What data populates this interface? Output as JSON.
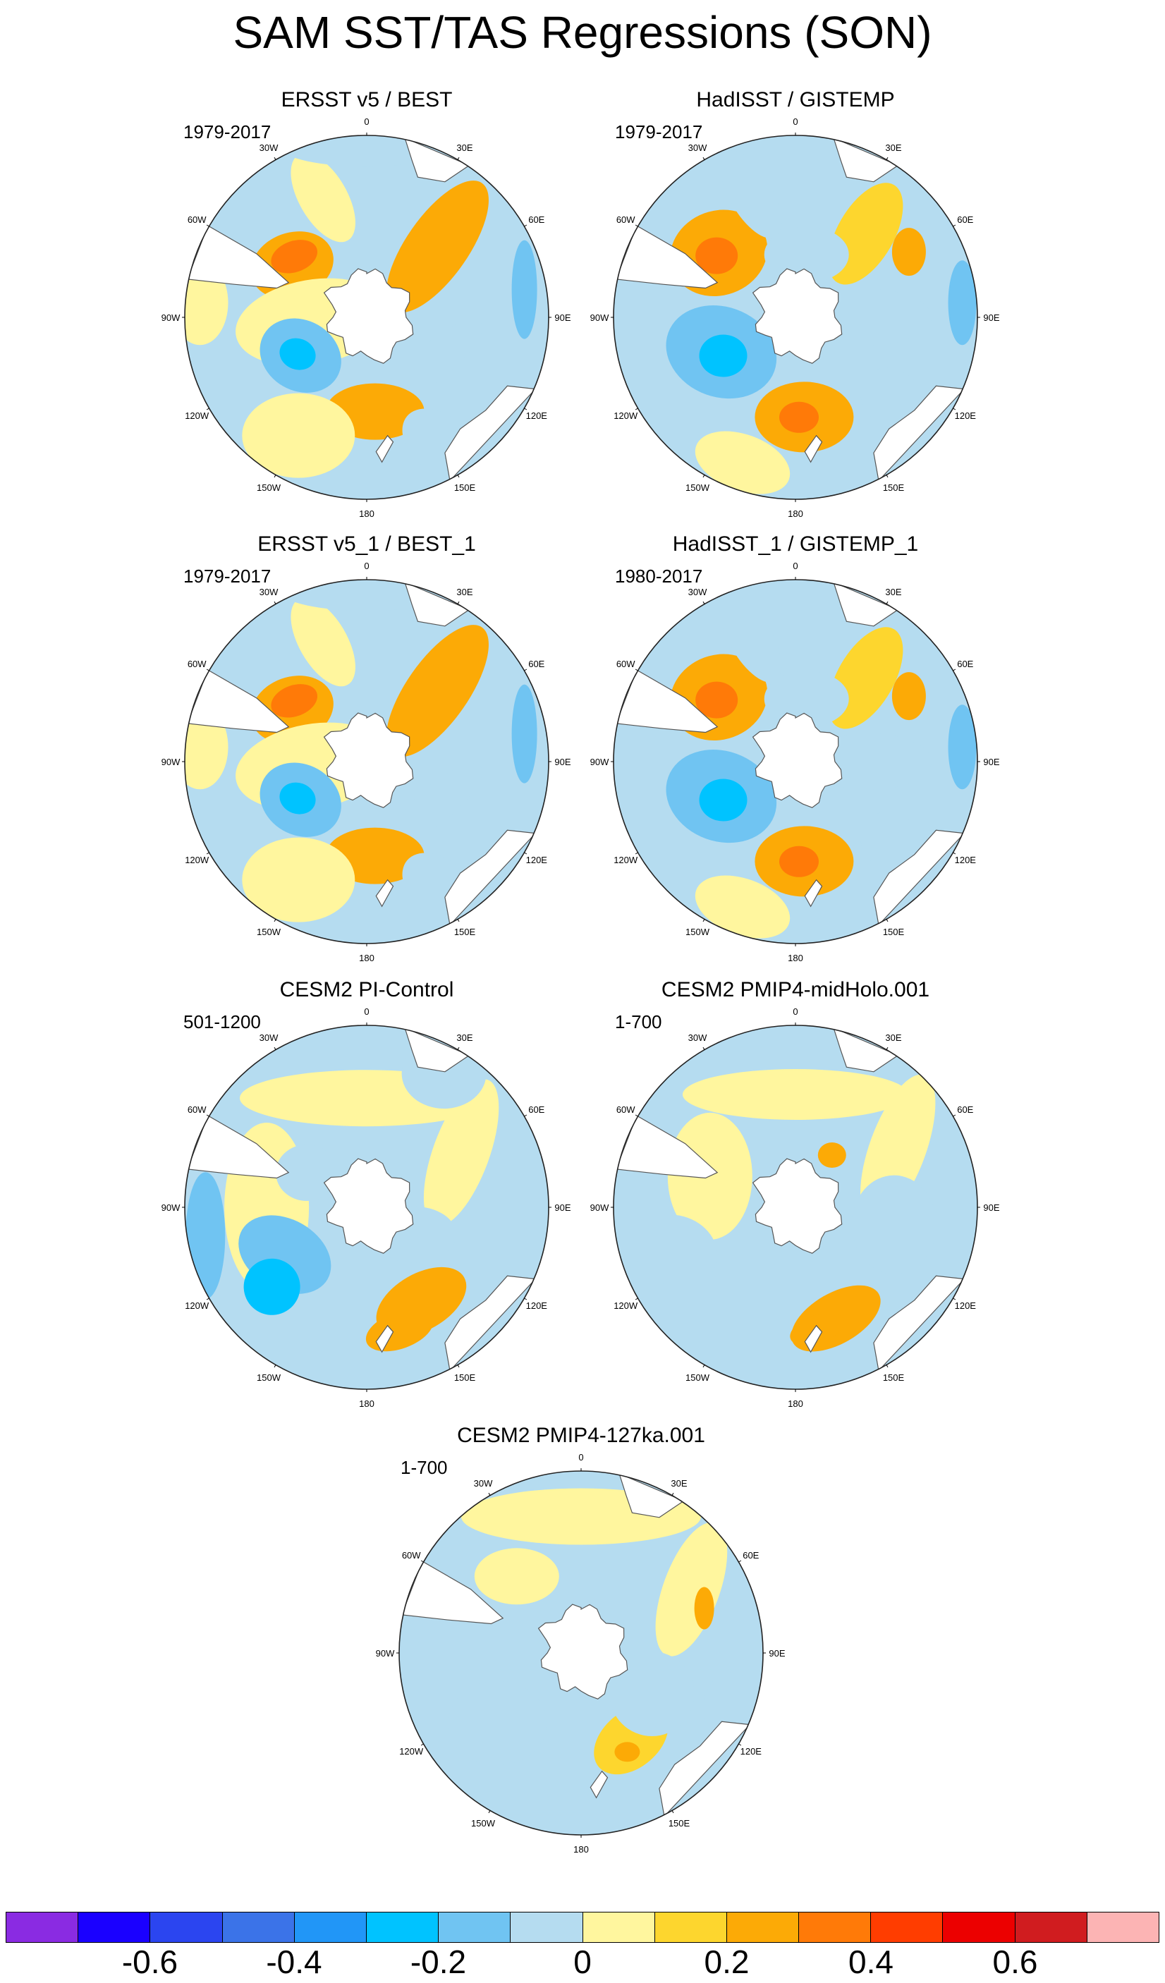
{
  "title": "SAM SST/TAS Regressions (SON)",
  "panels": [
    {
      "title": "ERSST v5 / BEST",
      "period": "1979-2017",
      "pattern": "obs_smooth"
    },
    {
      "title": "HadISST / GISTEMP",
      "period": "1979-2017",
      "pattern": "obs_noisy"
    },
    {
      "title": "ERSST v5_1 / BEST_1",
      "period": "1979-2017",
      "pattern": "obs_smooth"
    },
    {
      "title": "HadISST_1 / GISTEMP_1",
      "period": "1980-2017",
      "pattern": "obs_noisy"
    },
    {
      "title": "CESM2 PI-Control",
      "period": "501-1200",
      "pattern": "model_pi"
    },
    {
      "title": "CESM2 PMIP4-midHolo.001",
      "period": "1-700",
      "pattern": "model_holo"
    },
    {
      "title": "CESM2 PMIP4-127ka.001",
      "period": "1-700",
      "pattern": "model_127"
    }
  ],
  "longitude_labels": [
    "0",
    "30E",
    "60E",
    "90E",
    "120E",
    "150E",
    "180",
    "150W",
    "120W",
    "90W",
    "60W",
    "30W"
  ],
  "colorbar": {
    "colors": [
      "#8a2be2",
      "#1a00ff",
      "#2b45f0",
      "#3b73e8",
      "#2196f7",
      "#00c3ff",
      "#70c4f2",
      "#b5dcf0",
      "#fff69e",
      "#fdd62e",
      "#fcaa06",
      "#ff7a08",
      "#ff3d00",
      "#ec0000",
      "#d01c1f",
      "#fcb4b4"
    ],
    "tick_labels": [
      "-0.6",
      "-0.4",
      "-0.2",
      "0",
      "0.2",
      "0.4",
      "0.6"
    ],
    "tick_values": [
      -0.6,
      -0.4,
      -0.2,
      0,
      0.2,
      0.4,
      0.6
    ],
    "levels": [
      -0.7,
      -0.6,
      -0.5,
      -0.4,
      -0.3,
      -0.2,
      -0.1,
      0,
      0.1,
      0.2,
      0.3,
      0.4,
      0.5,
      0.6,
      0.7
    ],
    "units": ""
  },
  "map_colors": {
    "land": "#ffffff",
    "coast": "#555555",
    "frame": "#222222"
  }
}
